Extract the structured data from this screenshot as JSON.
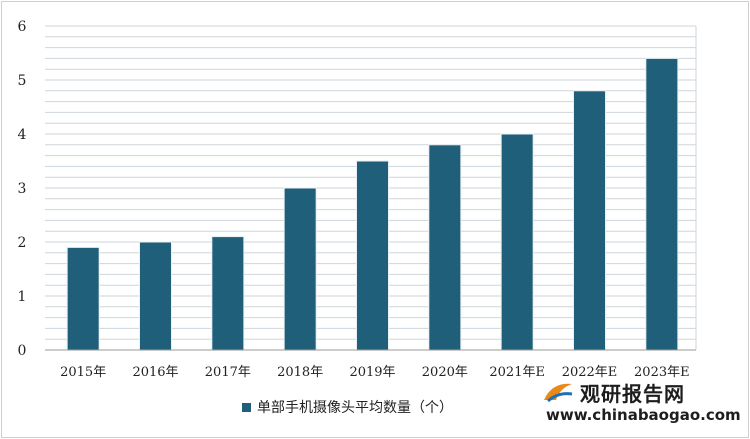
{
  "chart_data": {
    "type": "bar",
    "categories": [
      "2015年",
      "2016年",
      "2017年",
      "2018年",
      "2019年",
      "2020年",
      "2021年E",
      "2022年E",
      "2023年E"
    ],
    "series": [
      {
        "name": "单部手机摄像头平均数量（个）",
        "values": [
          1.9,
          2.0,
          2.1,
          3.0,
          3.5,
          3.8,
          4.0,
          4.8,
          5.4
        ]
      }
    ],
    "yticks": [
      "0",
      "1",
      "2",
      "3",
      "4",
      "5",
      "6"
    ],
    "ylim": [
      0,
      6
    ],
    "grid": true,
    "legend_position": "bottom",
    "colors": {
      "bar": "#1f5f7a",
      "grid": "#cdd6dc"
    }
  },
  "watermark": {
    "brand": "观研报告网",
    "url": "www.chinabaogao.com"
  }
}
